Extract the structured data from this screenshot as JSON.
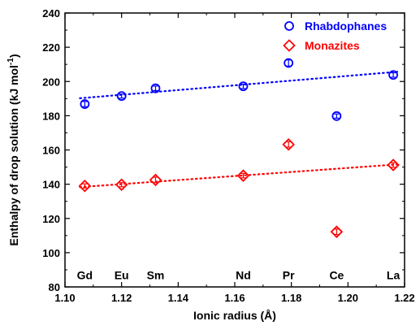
{
  "chart_data": {
    "type": "scatter",
    "xlabel": "Ionic radius (Å)",
    "ylabel_main": "Enthalpy of drop solution (kJ mol",
    "ylabel_sup": "-1",
    "ylabel_close": ")",
    "xlim": [
      1.1,
      1.22
    ],
    "ylim": [
      80,
      240
    ],
    "xticks": [
      1.1,
      1.12,
      1.14,
      1.16,
      1.18,
      1.2,
      1.22
    ],
    "xtick_labels": [
      "1.10",
      "1.12",
      "1.14",
      "1.16",
      "1.18",
      "1.20",
      "1.22"
    ],
    "yticks": [
      80,
      100,
      120,
      140,
      160,
      180,
      200,
      220,
      240
    ],
    "ytick_labels": [
      "80",
      "100",
      "120",
      "140",
      "160",
      "180",
      "200",
      "220",
      "240"
    ],
    "grid": false,
    "legend_position": "top-right",
    "element_labels": [
      {
        "text": "Gd",
        "x": 1.107
      },
      {
        "text": "Eu",
        "x": 1.12
      },
      {
        "text": "Sm",
        "x": 1.132
      },
      {
        "text": "Nd",
        "x": 1.163
      },
      {
        "text": "Pr",
        "x": 1.179
      },
      {
        "text": "Ce",
        "x": 1.196
      },
      {
        "text": "La",
        "x": 1.216
      }
    ],
    "element_label_y": 87,
    "series": [
      {
        "name": "Rhabdophanes",
        "color": "#0000ff",
        "marker": "circle",
        "points": [
          {
            "x": 1.107,
            "y": 186.8,
            "err": 1.5
          },
          {
            "x": 1.12,
            "y": 191.5,
            "err": 1.2
          },
          {
            "x": 1.132,
            "y": 196.0,
            "err": 1.3
          },
          {
            "x": 1.163,
            "y": 197.2,
            "err": 1.3
          },
          {
            "x": 1.179,
            "y": 210.8,
            "err": 1.8
          },
          {
            "x": 1.196,
            "y": 179.8,
            "err": 1.2
          },
          {
            "x": 1.216,
            "y": 203.8,
            "err": 1.3
          }
        ],
        "fit": {
          "x1": 1.107,
          "y1": 190.2,
          "x2": 1.216,
          "y2": 205.7
        }
      },
      {
        "name": "Monazites",
        "color": "#ff0000",
        "marker": "diamond",
        "points": [
          {
            "x": 1.107,
            "y": 139.0,
            "err": 1.2
          },
          {
            "x": 1.12,
            "y": 139.7,
            "err": 1.2
          },
          {
            "x": 1.132,
            "y": 142.5,
            "err": 1.6
          },
          {
            "x": 1.163,
            "y": 145.0,
            "err": 1.3
          },
          {
            "x": 1.179,
            "y": 163.2,
            "err": 1.6
          },
          {
            "x": 1.196,
            "y": 112.2,
            "err": 1.6
          },
          {
            "x": 1.216,
            "y": 151.2,
            "err": 1.3
          }
        ],
        "fit": {
          "x1": 1.107,
          "y1": 138.3,
          "x2": 1.216,
          "y2": 151.6
        }
      }
    ]
  }
}
